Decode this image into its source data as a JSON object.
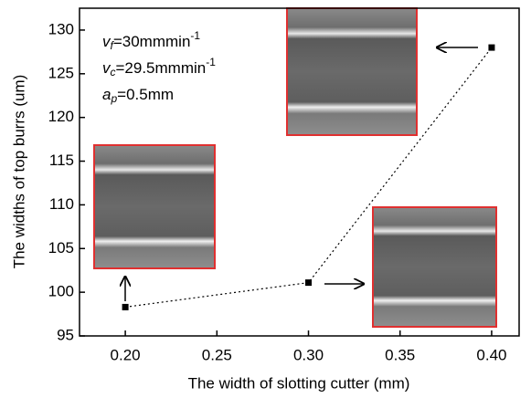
{
  "chart_data": {
    "type": "line",
    "x_label": "The width of slotting cutter  (mm)",
    "y_label": "The widths of top burrs  (um)",
    "x": [
      0.2,
      0.3,
      0.4
    ],
    "series": [
      {
        "color": "#000000",
        "values": [
          98.3,
          101.1,
          128.0
        ]
      }
    ],
    "xlim": [
      0.175,
      0.415
    ],
    "ylim": [
      95,
      132.5
    ],
    "xticks": [
      {
        "value": 0.2,
        "label": "0.20"
      },
      {
        "value": 0.25,
        "label": "0.25"
      },
      {
        "value": 0.3,
        "label": "0.30"
      },
      {
        "value": 0.35,
        "label": "0.35"
      },
      {
        "value": 0.4,
        "label": "0.40"
      }
    ],
    "yticks": [
      95,
      100,
      105,
      110,
      115,
      120,
      125,
      130
    ],
    "annotations": [
      {
        "var": "v",
        "sub": "f",
        "text": "=30mmmin",
        "sup": "-1"
      },
      {
        "var": "v",
        "sub": "c",
        "text": "=29.5mmmin",
        "sup": "-1"
      },
      {
        "var": "a",
        "sub": "p",
        "text": "=0.5mm"
      }
    ]
  }
}
